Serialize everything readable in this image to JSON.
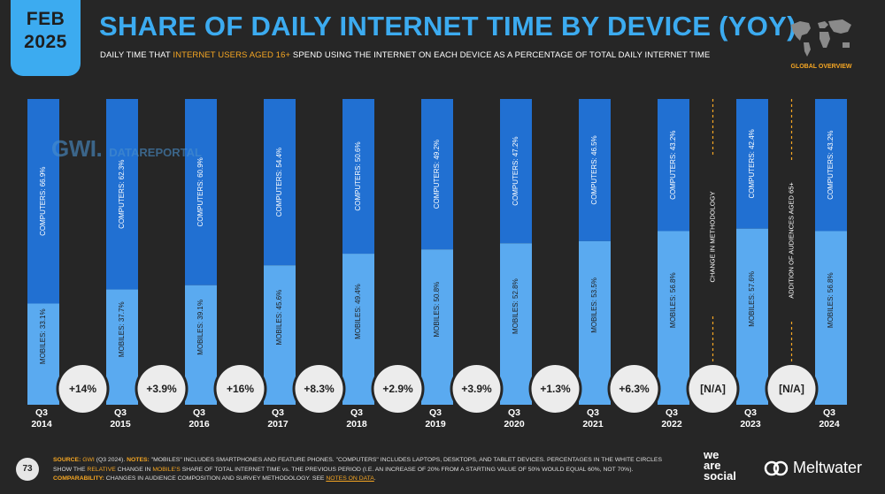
{
  "header": {
    "badge_month": "FEB",
    "badge_year": "2025",
    "title": "SHARE OF DAILY INTERNET TIME BY DEVICE (YOY)",
    "subtitle_pre": "DAILY TIME THAT ",
    "subtitle_highlight": "INTERNET USERS AGED 16+",
    "subtitle_post": " SPEND USING THE INTERNET ON EACH DEVICE AS A PERCENTAGE OF TOTAL DAILY INTERNET TIME",
    "map_label": "GLOBAL OVERVIEW"
  },
  "watermark": {
    "gwi": "GWI.",
    "dr": "DATAREPORTAL"
  },
  "chart_data": {
    "type": "bar",
    "stacked": true,
    "orientation": "vertical",
    "categories": [
      "Q3 2014",
      "Q3 2015",
      "Q3 2016",
      "Q3 2017",
      "Q3 2018",
      "Q3 2019",
      "Q3 2020",
      "Q3 2021",
      "Q3 2022",
      "Q3 2023",
      "Q3 2024"
    ],
    "category_lines": [
      [
        "Q3",
        "2014"
      ],
      [
        "Q3",
        "2015"
      ],
      [
        "Q3",
        "2016"
      ],
      [
        "Q3",
        "2017"
      ],
      [
        "Q3",
        "2018"
      ],
      [
        "Q3",
        "2019"
      ],
      [
        "Q3",
        "2020"
      ],
      [
        "Q3",
        "2021"
      ],
      [
        "Q3",
        "2022"
      ],
      [
        "Q3",
        "2023"
      ],
      [
        "Q3",
        "2024"
      ]
    ],
    "series": [
      {
        "name": "MOBILES",
        "color": "#5aaaf0",
        "values": [
          33.1,
          37.7,
          39.1,
          45.6,
          49.4,
          50.8,
          52.8,
          53.5,
          56.8,
          57.6,
          56.8
        ],
        "labels": [
          "MOBILES: 33.1%",
          "MOBILES: 37.7%",
          "MOBILES: 39.1%",
          "MOBILES: 45.6%",
          "MOBILES: 49.4%",
          "MOBILES: 50.8%",
          "MOBILES: 52.8%",
          "MOBILES: 53.5%",
          "MOBILES: 56.8%",
          "MOBILES: 57.6%",
          "MOBILES: 56.8%"
        ]
      },
      {
        "name": "COMPUTERS",
        "color": "#2170d2",
        "values": [
          66.9,
          62.3,
          60.9,
          54.4,
          50.6,
          49.2,
          47.2,
          46.5,
          43.2,
          42.4,
          43.2
        ],
        "labels": [
          "COMPUTERS: 66.9%",
          "COMPUTERS: 62.3%",
          "COMPUTERS: 60.9%",
          "COMPUTERS: 54.4%",
          "COMPUTERS: 50.6%",
          "COMPUTERS: 49.2%",
          "COMPUTERS: 47.2%",
          "COMPUTERS: 46.5%",
          "COMPUTERS: 43.2%",
          "COMPUTERS: 42.4%",
          "COMPUTERS: 43.2%"
        ]
      }
    ],
    "yoy_change": [
      "+14%",
      "+3.9%",
      "+16%",
      "+8.3%",
      "+2.9%",
      "+3.9%",
      "+1.3%",
      "+6.3%",
      "[N/A]",
      "[N/A]"
    ],
    "ylim": [
      0,
      100
    ],
    "annotations": [
      "CHANGE IN METHODOLOGY",
      "ADDITION OF AUDIENCES AGED 65+"
    ]
  },
  "footer": {
    "page_number": "73",
    "source_label": "SOURCE:",
    "source_gwi": "GWI",
    "source_text": " (Q3 2024). ",
    "notes_label": "NOTES:",
    "notes_text_1": " \"MOBILES\" INCLUDES SMARTPHONES AND FEATURE PHONES. \"COMPUTERS\" INCLUDES LAPTOPS, DESKTOPS, AND TABLET DEVICES. PERCENTAGES IN THE WHITE CIRCLES SHOW THE ",
    "notes_relative": "RELATIVE",
    "notes_text_2": " CHANGE IN ",
    "notes_mobiles_share": "MOBILE'S",
    "notes_text_3": " SHARE OF TOTAL INTERNET TIME vs. THE PREVIOUS PERIOD (I.E. AN INCREASE OF 20% FROM A STARTING VALUE OF 50% WOULD EQUAL 60%, NOT 70%).",
    "comparability_label": "COMPARABILITY:",
    "comparability_text": " CHANGES IN AUDIENCE COMPOSITION AND SURVEY METHODOLOGY. SEE ",
    "notes_link": "NOTES ON DATA",
    "end": "."
  },
  "brand": {
    "was_1": "we",
    "was_2": "are",
    "was_3": "social",
    "meltwater": "Meltwater"
  }
}
